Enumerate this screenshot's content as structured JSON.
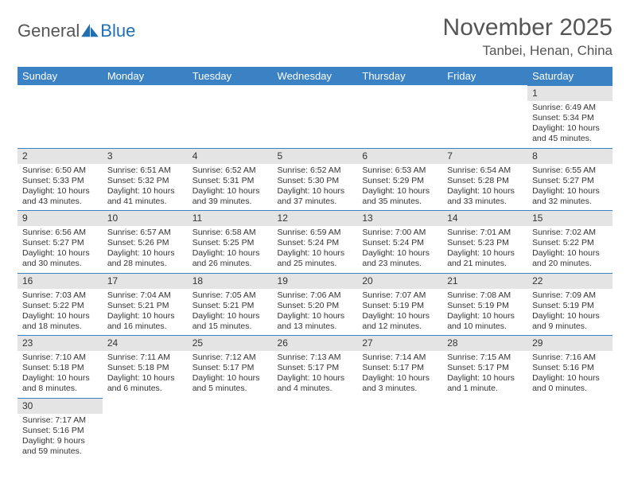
{
  "brand": {
    "word1": "General",
    "word2": "Blue"
  },
  "title": "November 2025",
  "location": "Tanbei, Henan, China",
  "colors": {
    "header_bg": "#3b82c4",
    "header_text": "#ffffff",
    "daynum_bg": "#e4e4e4",
    "row_divider": "#3b82c4",
    "title_color": "#555555",
    "text_color": "#333333",
    "brand_blue": "#1f6fb2"
  },
  "fonts": {
    "title_pt": 30,
    "location_pt": 17,
    "dayhead_pt": 13,
    "cell_pt": 10.5
  },
  "daynames": [
    "Sunday",
    "Monday",
    "Tuesday",
    "Wednesday",
    "Thursday",
    "Friday",
    "Saturday"
  ],
  "weeks": [
    [
      null,
      null,
      null,
      null,
      null,
      null,
      {
        "n": "1",
        "sunrise": "Sunrise: 6:49 AM",
        "sunset": "Sunset: 5:34 PM",
        "day1": "Daylight: 10 hours",
        "day2": "and 45 minutes."
      }
    ],
    [
      {
        "n": "2",
        "sunrise": "Sunrise: 6:50 AM",
        "sunset": "Sunset: 5:33 PM",
        "day1": "Daylight: 10 hours",
        "day2": "and 43 minutes."
      },
      {
        "n": "3",
        "sunrise": "Sunrise: 6:51 AM",
        "sunset": "Sunset: 5:32 PM",
        "day1": "Daylight: 10 hours",
        "day2": "and 41 minutes."
      },
      {
        "n": "4",
        "sunrise": "Sunrise: 6:52 AM",
        "sunset": "Sunset: 5:31 PM",
        "day1": "Daylight: 10 hours",
        "day2": "and 39 minutes."
      },
      {
        "n": "5",
        "sunrise": "Sunrise: 6:52 AM",
        "sunset": "Sunset: 5:30 PM",
        "day1": "Daylight: 10 hours",
        "day2": "and 37 minutes."
      },
      {
        "n": "6",
        "sunrise": "Sunrise: 6:53 AM",
        "sunset": "Sunset: 5:29 PM",
        "day1": "Daylight: 10 hours",
        "day2": "and 35 minutes."
      },
      {
        "n": "7",
        "sunrise": "Sunrise: 6:54 AM",
        "sunset": "Sunset: 5:28 PM",
        "day1": "Daylight: 10 hours",
        "day2": "and 33 minutes."
      },
      {
        "n": "8",
        "sunrise": "Sunrise: 6:55 AM",
        "sunset": "Sunset: 5:27 PM",
        "day1": "Daylight: 10 hours",
        "day2": "and 32 minutes."
      }
    ],
    [
      {
        "n": "9",
        "sunrise": "Sunrise: 6:56 AM",
        "sunset": "Sunset: 5:27 PM",
        "day1": "Daylight: 10 hours",
        "day2": "and 30 minutes."
      },
      {
        "n": "10",
        "sunrise": "Sunrise: 6:57 AM",
        "sunset": "Sunset: 5:26 PM",
        "day1": "Daylight: 10 hours",
        "day2": "and 28 minutes."
      },
      {
        "n": "11",
        "sunrise": "Sunrise: 6:58 AM",
        "sunset": "Sunset: 5:25 PM",
        "day1": "Daylight: 10 hours",
        "day2": "and 26 minutes."
      },
      {
        "n": "12",
        "sunrise": "Sunrise: 6:59 AM",
        "sunset": "Sunset: 5:24 PM",
        "day1": "Daylight: 10 hours",
        "day2": "and 25 minutes."
      },
      {
        "n": "13",
        "sunrise": "Sunrise: 7:00 AM",
        "sunset": "Sunset: 5:24 PM",
        "day1": "Daylight: 10 hours",
        "day2": "and 23 minutes."
      },
      {
        "n": "14",
        "sunrise": "Sunrise: 7:01 AM",
        "sunset": "Sunset: 5:23 PM",
        "day1": "Daylight: 10 hours",
        "day2": "and 21 minutes."
      },
      {
        "n": "15",
        "sunrise": "Sunrise: 7:02 AM",
        "sunset": "Sunset: 5:22 PM",
        "day1": "Daylight: 10 hours",
        "day2": "and 20 minutes."
      }
    ],
    [
      {
        "n": "16",
        "sunrise": "Sunrise: 7:03 AM",
        "sunset": "Sunset: 5:22 PM",
        "day1": "Daylight: 10 hours",
        "day2": "and 18 minutes."
      },
      {
        "n": "17",
        "sunrise": "Sunrise: 7:04 AM",
        "sunset": "Sunset: 5:21 PM",
        "day1": "Daylight: 10 hours",
        "day2": "and 16 minutes."
      },
      {
        "n": "18",
        "sunrise": "Sunrise: 7:05 AM",
        "sunset": "Sunset: 5:21 PM",
        "day1": "Daylight: 10 hours",
        "day2": "and 15 minutes."
      },
      {
        "n": "19",
        "sunrise": "Sunrise: 7:06 AM",
        "sunset": "Sunset: 5:20 PM",
        "day1": "Daylight: 10 hours",
        "day2": "and 13 minutes."
      },
      {
        "n": "20",
        "sunrise": "Sunrise: 7:07 AM",
        "sunset": "Sunset: 5:19 PM",
        "day1": "Daylight: 10 hours",
        "day2": "and 12 minutes."
      },
      {
        "n": "21",
        "sunrise": "Sunrise: 7:08 AM",
        "sunset": "Sunset: 5:19 PM",
        "day1": "Daylight: 10 hours",
        "day2": "and 10 minutes."
      },
      {
        "n": "22",
        "sunrise": "Sunrise: 7:09 AM",
        "sunset": "Sunset: 5:19 PM",
        "day1": "Daylight: 10 hours",
        "day2": "and 9 minutes."
      }
    ],
    [
      {
        "n": "23",
        "sunrise": "Sunrise: 7:10 AM",
        "sunset": "Sunset: 5:18 PM",
        "day1": "Daylight: 10 hours",
        "day2": "and 8 minutes."
      },
      {
        "n": "24",
        "sunrise": "Sunrise: 7:11 AM",
        "sunset": "Sunset: 5:18 PM",
        "day1": "Daylight: 10 hours",
        "day2": "and 6 minutes."
      },
      {
        "n": "25",
        "sunrise": "Sunrise: 7:12 AM",
        "sunset": "Sunset: 5:17 PM",
        "day1": "Daylight: 10 hours",
        "day2": "and 5 minutes."
      },
      {
        "n": "26",
        "sunrise": "Sunrise: 7:13 AM",
        "sunset": "Sunset: 5:17 PM",
        "day1": "Daylight: 10 hours",
        "day2": "and 4 minutes."
      },
      {
        "n": "27",
        "sunrise": "Sunrise: 7:14 AM",
        "sunset": "Sunset: 5:17 PM",
        "day1": "Daylight: 10 hours",
        "day2": "and 3 minutes."
      },
      {
        "n": "28",
        "sunrise": "Sunrise: 7:15 AM",
        "sunset": "Sunset: 5:17 PM",
        "day1": "Daylight: 10 hours",
        "day2": "and 1 minute."
      },
      {
        "n": "29",
        "sunrise": "Sunrise: 7:16 AM",
        "sunset": "Sunset: 5:16 PM",
        "day1": "Daylight: 10 hours",
        "day2": "and 0 minutes."
      }
    ],
    [
      {
        "n": "30",
        "sunrise": "Sunrise: 7:17 AM",
        "sunset": "Sunset: 5:16 PM",
        "day1": "Daylight: 9 hours",
        "day2": "and 59 minutes."
      },
      null,
      null,
      null,
      null,
      null,
      null
    ]
  ]
}
